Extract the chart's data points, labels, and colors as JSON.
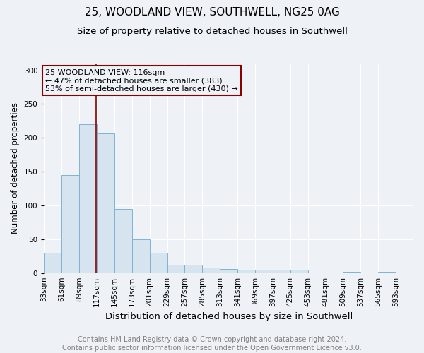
{
  "title1": "25, WOODLAND VIEW, SOUTHWELL, NG25 0AG",
  "title2": "Size of property relative to detached houses in Southwell",
  "xlabel": "Distribution of detached houses by size in Southwell",
  "ylabel": "Number of detached properties",
  "footer1": "Contains HM Land Registry data © Crown copyright and database right 2024.",
  "footer2": "Contains public sector information licensed under the Open Government Licence v3.0.",
  "annotation_line1": "25 WOODLAND VIEW: 116sqm",
  "annotation_line2": "← 47% of detached houses are smaller (383)",
  "annotation_line3": "53% of semi-detached houses are larger (430) →",
  "property_size": 116,
  "bar_left_edges": [
    33,
    61,
    89,
    117,
    145,
    173,
    201,
    229,
    257,
    285,
    313,
    341,
    369,
    397,
    425,
    453,
    481,
    509,
    537,
    565,
    593
  ],
  "bar_values": [
    30,
    145,
    220,
    207,
    95,
    50,
    30,
    12,
    12,
    8,
    6,
    5,
    5,
    5,
    5,
    1,
    0,
    2,
    0,
    2
  ],
  "bar_color": "#d6e4f0",
  "bar_edge_color": "#7fb3d3",
  "vline_color": "#8b0000",
  "vline_x": 116,
  "annotation_box_color": "#8b0000",
  "ylim": [
    0,
    310
  ],
  "yticks": [
    0,
    50,
    100,
    150,
    200,
    250,
    300
  ],
  "background_color": "#eef2f7",
  "plot_bg_color": "#eef2f7",
  "title1_fontsize": 11,
  "title2_fontsize": 9.5,
  "xlabel_fontsize": 9.5,
  "ylabel_fontsize": 8.5,
  "tick_fontsize": 7.5,
  "footer_fontsize": 7,
  "annotation_fontsize": 8
}
